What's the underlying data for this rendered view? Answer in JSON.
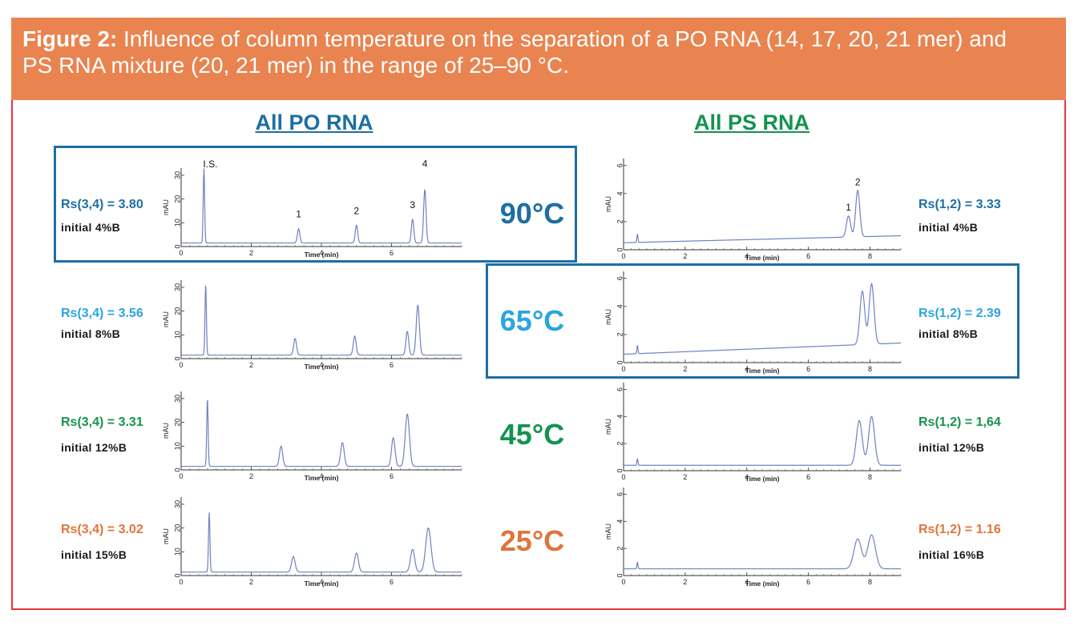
{
  "figure": {
    "label": "Figure 2:",
    "caption_line1": " Influence of column temperature on the separation of a PO RNA (14, 17, 20, 21 mer) and",
    "caption_line2": "PS RNA mixture (20, 21 mer) in the range of 25–90 °C."
  },
  "columns": {
    "left_title": "All PO RNA",
    "right_title": "All PS RNA"
  },
  "colors": {
    "header_bg": "#e98450",
    "frame": "#e8343c",
    "highlight_box": "#1d6ea4",
    "trace": "#6f82c0",
    "c90": "#1d6ea4",
    "c65": "#2aa6dd",
    "c45": "#14934f",
    "c25": "#e0743c",
    "po_title": "#1d6ea4",
    "ps_title": "#14934f"
  },
  "rows": [
    {
      "temperature": "90°C",
      "color_key": "c90",
      "po_rs": "Rs(3,4) = 3.80",
      "po_initial": "initial 4%B",
      "ps_rs": "Rs(1,2) = 3.33",
      "ps_initial": "initial 4%B"
    },
    {
      "temperature": "65°C",
      "color_key": "c65",
      "po_rs": "Rs(3,4) = 3.56",
      "po_initial": "initial 8%B",
      "ps_rs": "Rs(1,2) = 2.39",
      "ps_initial": "initial 8%B"
    },
    {
      "temperature": "45°C",
      "color_key": "c45",
      "po_rs": "Rs(3,4) = 3.31",
      "po_initial": "initial 12%B",
      "ps_rs": "Rs(1,2) = 1,64",
      "ps_initial": "initial 12%B"
    },
    {
      "temperature": "25°C",
      "color_key": "c25",
      "po_rs": "Rs(3,4) = 3.02",
      "po_initial": "initial 15%B",
      "ps_rs": "Rs(1,2) = 1.16",
      "ps_initial": "initial 16%B"
    }
  ],
  "chart_data": [
    {
      "type": "line",
      "id": "po-90",
      "xlabel": "Time (min)",
      "ylabel": "mAU",
      "xlim": [
        0,
        8
      ],
      "ylim": [
        0,
        33
      ],
      "xticks": [
        "0",
        "2",
        "4",
        "6"
      ],
      "yticks": [
        "0",
        "10",
        "20",
        "30"
      ],
      "baseline": [
        1.5,
        1.5
      ],
      "peaks": [
        {
          "t": 0.65,
          "h": 31.5,
          "w": 0.02,
          "label": "I.S."
        },
        {
          "t": 3.35,
          "h": 6,
          "w": 0.035,
          "label": "1"
        },
        {
          "t": 5.0,
          "h": 7.5,
          "w": 0.035,
          "label": "2"
        },
        {
          "t": 6.6,
          "h": 10,
          "w": 0.035,
          "label": "3"
        },
        {
          "t": 6.95,
          "h": 22.5,
          "w": 0.035,
          "label": "4"
        }
      ]
    },
    {
      "type": "line",
      "id": "po-65",
      "xlabel": "Time (min)",
      "ylabel": "mAU",
      "xlim": [
        0,
        8
      ],
      "ylim": [
        0,
        33
      ],
      "xticks": [
        "0",
        "2",
        "4",
        "6"
      ],
      "yticks": [
        "0",
        "10",
        "20",
        "30"
      ],
      "baseline": [
        1.5,
        1.5
      ],
      "peaks": [
        {
          "t": 0.7,
          "h": 29.5,
          "w": 0.02
        },
        {
          "t": 3.25,
          "h": 7,
          "w": 0.04
        },
        {
          "t": 4.95,
          "h": 8,
          "w": 0.04
        },
        {
          "t": 6.45,
          "h": 10,
          "w": 0.04
        },
        {
          "t": 6.75,
          "h": 21,
          "w": 0.045
        }
      ]
    },
    {
      "type": "line",
      "id": "po-45",
      "xlabel": "Time (min)",
      "ylabel": "mAU",
      "xlim": [
        0,
        8
      ],
      "ylim": [
        0,
        33
      ],
      "xticks": [
        "0",
        "2",
        "4",
        "6"
      ],
      "yticks": [
        "0",
        "10",
        "20",
        "30"
      ],
      "baseline": [
        1.5,
        1.5
      ],
      "peaks": [
        {
          "t": 0.75,
          "h": 28.5,
          "w": 0.02
        },
        {
          "t": 2.85,
          "h": 8.5,
          "w": 0.045
        },
        {
          "t": 4.6,
          "h": 10,
          "w": 0.05
        },
        {
          "t": 6.05,
          "h": 12,
          "w": 0.05
        },
        {
          "t": 6.45,
          "h": 22,
          "w": 0.06
        }
      ]
    },
    {
      "type": "line",
      "id": "po-25",
      "xlabel": "Time (min)",
      "ylabel": "mAU",
      "xlim": [
        0,
        8
      ],
      "ylim": [
        0,
        33
      ],
      "xticks": [
        "0",
        "2",
        "4",
        "6"
      ],
      "yticks": [
        "0",
        "10",
        "20",
        "30"
      ],
      "baseline": [
        1.5,
        1.5
      ],
      "peaks": [
        {
          "t": 0.8,
          "h": 25,
          "w": 0.02
        },
        {
          "t": 3.2,
          "h": 6.5,
          "w": 0.05
        },
        {
          "t": 5.0,
          "h": 8,
          "w": 0.055
        },
        {
          "t": 6.6,
          "h": 9.5,
          "w": 0.06
        },
        {
          "t": 7.05,
          "h": 18.5,
          "w": 0.075
        }
      ]
    },
    {
      "type": "line",
      "id": "ps-90",
      "xlabel": "Time (min)",
      "ylabel": "mAU",
      "xlim": [
        0,
        9
      ],
      "ylim": [
        0,
        6.5
      ],
      "xticks": [
        "0",
        "2",
        "4",
        "6",
        "8"
      ],
      "yticks": [
        "0",
        "2",
        "4",
        "6"
      ],
      "baseline": [
        0.5,
        1.0
      ],
      "peaks": [
        {
          "t": 0.45,
          "h": 0.6,
          "w": 0.015
        },
        {
          "t": 7.3,
          "h": 1.5,
          "w": 0.06,
          "label": "1"
        },
        {
          "t": 7.6,
          "h": 3.3,
          "w": 0.06,
          "label": "2"
        }
      ]
    },
    {
      "type": "line",
      "id": "ps-65",
      "xlabel": "Time (min)",
      "ylabel": "mAU",
      "xlim": [
        0,
        9
      ],
      "ylim": [
        0,
        6.5
      ],
      "xticks": [
        "0",
        "2",
        "4",
        "6",
        "8"
      ],
      "yticks": [
        "0",
        "2",
        "4",
        "6"
      ],
      "baseline": [
        0.6,
        1.4
      ],
      "peaks": [
        {
          "t": 0.45,
          "h": 0.6,
          "w": 0.015
        },
        {
          "t": 7.75,
          "h": 3.8,
          "w": 0.07
        },
        {
          "t": 8.05,
          "h": 4.3,
          "w": 0.07
        }
      ]
    },
    {
      "type": "line",
      "id": "ps-45",
      "xlabel": "Time (min)",
      "ylabel": "mAU",
      "xlim": [
        0,
        9
      ],
      "ylim": [
        0,
        6.5
      ],
      "xticks": [
        "0",
        "2",
        "4",
        "6",
        "8"
      ],
      "yticks": [
        "0",
        "2",
        "4",
        "6"
      ],
      "baseline": [
        0.4,
        0.4
      ],
      "peaks": [
        {
          "t": 0.45,
          "h": 0.5,
          "w": 0.015
        },
        {
          "t": 7.65,
          "h": 3.3,
          "w": 0.085
        },
        {
          "t": 8.05,
          "h": 3.6,
          "w": 0.085
        }
      ]
    },
    {
      "type": "line",
      "id": "ps-25",
      "xlabel": "Time (min)",
      "ylabel": "mAU",
      "xlim": [
        0,
        9
      ],
      "ylim": [
        0,
        6.5
      ],
      "xticks": [
        "0",
        "2",
        "4",
        "6",
        "8"
      ],
      "yticks": [
        "0",
        "2",
        "4",
        "6"
      ],
      "baseline": [
        0.5,
        0.5
      ],
      "peaks": [
        {
          "t": 0.45,
          "h": 0.5,
          "w": 0.015
        },
        {
          "t": 7.6,
          "h": 2.2,
          "w": 0.11
        },
        {
          "t": 8.05,
          "h": 2.5,
          "w": 0.11
        }
      ]
    }
  ]
}
